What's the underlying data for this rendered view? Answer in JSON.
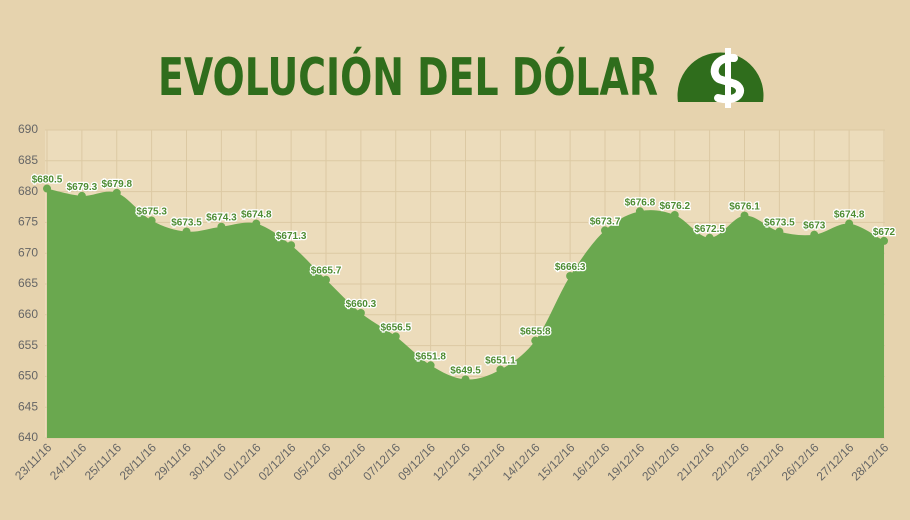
{
  "chart_data": {
    "type": "area",
    "title": "EVOLUCIÓN DEL DÓLAR",
    "categories": [
      "23/11/16",
      "24/11/16",
      "25/11/16",
      "28/11/16",
      "29/11/16",
      "30/11/16",
      "01/12/16",
      "02/12/16",
      "05/12/16",
      "06/12/16",
      "07/12/16",
      "09/12/16",
      "12/12/16",
      "13/12/16",
      "14/12/16",
      "15/12/16",
      "16/12/16",
      "19/12/16",
      "20/12/16",
      "21/12/16",
      "22/12/16",
      "23/12/16",
      "26/12/16",
      "27/12/16",
      "28/12/16"
    ],
    "values": [
      680.5,
      679.3,
      679.8,
      675.3,
      673.5,
      674.3,
      674.8,
      671.3,
      665.7,
      660.3,
      656.5,
      651.8,
      649.5,
      651.1,
      655.8,
      666.3,
      673.7,
      676.8,
      676.2,
      672.5,
      676.1,
      673.5,
      673,
      674.8,
      672
    ],
    "value_labels": [
      "$680.5",
      "$679.3",
      "$679.8",
      "$675.3",
      "$673.5",
      "$674.3",
      "$674.8",
      "$671.3",
      "$665.7",
      "$660.3",
      "$656.5",
      "$651.8",
      "$649.5",
      "$651.1",
      "$655.8",
      "$666.3",
      "$673.7",
      "$676.8",
      "$676.2",
      "$672.5",
      "$676.1",
      "$673.5",
      "$673",
      "$674.8",
      "$672"
    ],
    "color": "#6aa84f",
    "ylim": [
      640,
      690
    ],
    "yticks": [
      640,
      645,
      650,
      655,
      660,
      665,
      670,
      675,
      680,
      685,
      690
    ],
    "grid": true
  }
}
